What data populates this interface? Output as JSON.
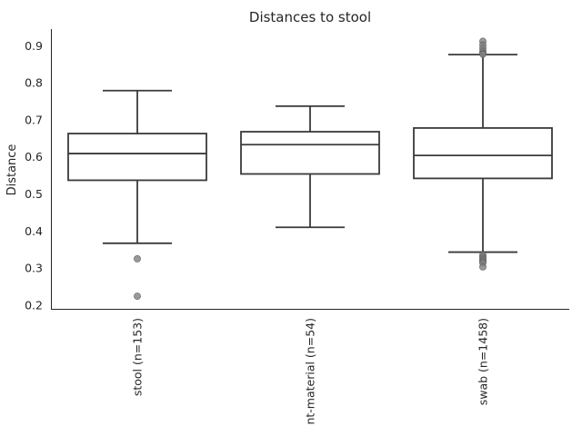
{
  "chart_data": {
    "type": "box",
    "title": "Distances to stool",
    "xlabel": "",
    "ylabel": "Distance",
    "ylim": [
      0.19,
      0.945
    ],
    "yticks": [
      "0.2",
      "0.3",
      "0.4",
      "0.5",
      "0.6",
      "0.7",
      "0.8",
      "0.9"
    ],
    "grid": false,
    "categories": [
      "stool (n=153)",
      "nt-material (n=54)",
      "swab (n=1458)"
    ],
    "boxes": [
      {
        "q1": 0.537,
        "median": 0.609,
        "q3": 0.663,
        "whisker_low": 0.367,
        "whisker_high": 0.779,
        "outliers": [
          0.325,
          0.224
        ]
      },
      {
        "q1": 0.554,
        "median": 0.633,
        "q3": 0.668,
        "whisker_low": 0.41,
        "whisker_high": 0.737,
        "outliers": []
      },
      {
        "q1": 0.542,
        "median": 0.604,
        "q3": 0.678,
        "whisker_low": 0.343,
        "whisker_high": 0.876,
        "outliers": [
          0.912,
          0.902,
          0.893,
          0.885,
          0.88,
          0.877,
          0.335,
          0.33,
          0.326,
          0.322,
          0.318,
          0.314,
          0.303
        ]
      }
    ],
    "colors": {
      "box_edge": "#3a3a3a",
      "box_fill": "#ffffff",
      "outlier": "#7f7f7f",
      "axis": "#262626"
    }
  }
}
